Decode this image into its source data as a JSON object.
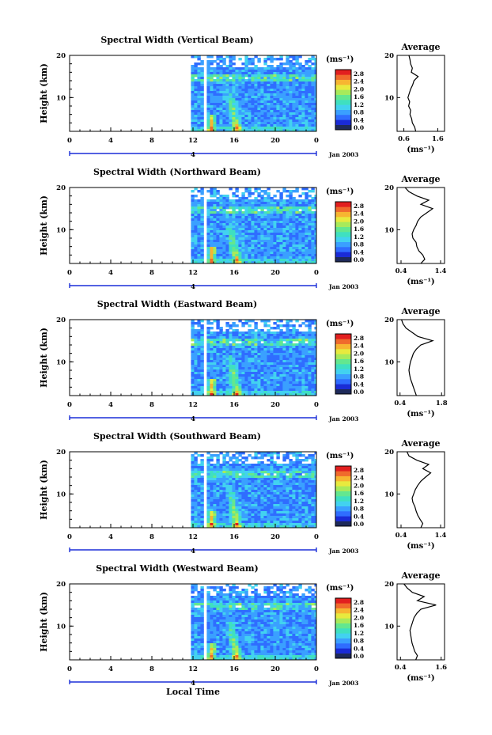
{
  "colors": {
    "colorbar": [
      "#1e2a5a",
      "#1a2bd6",
      "#2f6dff",
      "#3aa0ff",
      "#42d2f0",
      "#3fe0c0",
      "#63e78f",
      "#a8ea5a",
      "#e8ea3e",
      "#f7b531",
      "#f06a2c",
      "#e21f1f"
    ],
    "field_low": "#2b3fe0",
    "field_mid": "#38b9f2",
    "field_hot": "#e0281f",
    "background": "#ffffff"
  },
  "chart_data": [
    {
      "type": "heatmap",
      "title": "Spectral Width (Vertical Beam)",
      "ylabel": "Height (km)",
      "ylim": [
        2,
        20
      ],
      "yticks": [
        "10",
        "20"
      ],
      "xlim": [
        0,
        24
      ],
      "xticks": [
        "0",
        "4",
        "8",
        "12",
        "16",
        "20",
        "0"
      ],
      "date_tick": "4",
      "date_label": "Jan 2003",
      "data_gaps_hours": [
        [
          0,
          11.8
        ],
        [
          12.8,
          13.3
        ]
      ],
      "colorbar": {
        "unit": "(ms⁻¹)",
        "ticks": [
          "0.0",
          "0.4",
          "0.8",
          "1.2",
          "1.6",
          "2.0",
          "2.4",
          "2.8"
        ]
      },
      "profile": {
        "title": "Average",
        "xlabel": "(ms⁻¹)",
        "xticks": [
          "0.6",
          "1.6"
        ],
        "xlim": [
          0.4,
          1.8
        ],
        "heights": [
          2,
          3,
          4,
          5,
          6,
          7,
          8,
          9,
          10,
          11,
          12,
          13,
          14,
          15,
          16,
          17,
          18,
          19,
          20
        ],
        "values": [
          0.95,
          0.92,
          0.85,
          0.83,
          0.78,
          0.8,
          0.74,
          0.77,
          0.72,
          0.76,
          0.8,
          0.86,
          0.9,
          1.02,
          0.82,
          0.85,
          0.8,
          0.78,
          0.75
        ]
      }
    },
    {
      "type": "heatmap",
      "title": "Spectral Width (Northward Beam)",
      "ylabel": "Height (km)",
      "ylim": [
        2,
        20
      ],
      "yticks": [
        "10",
        "20"
      ],
      "xlim": [
        0,
        24
      ],
      "xticks": [
        "0",
        "4",
        "8",
        "12",
        "16",
        "20",
        "0"
      ],
      "date_tick": "4",
      "date_label": "Jan 2003",
      "data_gaps_hours": [
        [
          0,
          11.8
        ],
        [
          12.8,
          13.3
        ]
      ],
      "colorbar": {
        "unit": "(ms⁻¹)",
        "ticks": [
          "0.0",
          "0.4",
          "0.8",
          "1.2",
          "1.6",
          "2.0",
          "2.4",
          "2.8"
        ]
      },
      "profile": {
        "title": "Average",
        "xlabel": "(ms⁻¹)",
        "xticks": [
          "0.4",
          "1.4"
        ],
        "xlim": [
          0.3,
          1.5
        ],
        "heights": [
          2,
          3,
          4,
          5,
          6,
          7,
          8,
          9,
          10,
          11,
          12,
          13,
          14,
          15,
          16,
          17,
          18,
          19,
          20
        ],
        "values": [
          0.9,
          1.0,
          0.95,
          0.85,
          0.8,
          0.78,
          0.7,
          0.68,
          0.72,
          0.78,
          0.82,
          0.9,
          1.05,
          1.2,
          0.9,
          1.1,
          0.8,
          0.6,
          0.5
        ]
      }
    },
    {
      "type": "heatmap",
      "title": "Spectral Width (Eastward Beam)",
      "ylabel": "Height (km)",
      "ylim": [
        2,
        20
      ],
      "yticks": [
        "10",
        "20"
      ],
      "xlim": [
        0,
        24
      ],
      "xticks": [
        "0",
        "4",
        "8",
        "12",
        "16",
        "20",
        "0"
      ],
      "date_tick": "4",
      "date_label": "Jan 2003",
      "data_gaps_hours": [
        [
          0,
          11.8
        ],
        [
          12.8,
          13.3
        ]
      ],
      "colorbar": {
        "unit": "(ms⁻¹)",
        "ticks": [
          "0.0",
          "0.4",
          "0.8",
          "1.2",
          "1.6",
          "2.0",
          "2.4",
          "2.8"
        ]
      },
      "profile": {
        "title": "Average",
        "xlabel": "(ms⁻¹)",
        "xticks": [
          "0.4",
          "1.8"
        ],
        "xlim": [
          0.3,
          1.9
        ],
        "heights": [
          2,
          3,
          4,
          5,
          6,
          7,
          8,
          9,
          10,
          11,
          12,
          13,
          14,
          15,
          16,
          17,
          18,
          19,
          20
        ],
        "values": [
          0.95,
          0.9,
          0.85,
          0.8,
          0.75,
          0.72,
          0.7,
          0.72,
          0.75,
          0.8,
          0.85,
          0.95,
          1.1,
          1.5,
          1.0,
          0.8,
          0.6,
          0.5,
          0.45
        ]
      }
    },
    {
      "type": "heatmap",
      "title": "Spectral Width (Southward Beam)",
      "ylabel": "Height (km)",
      "ylim": [
        2,
        20
      ],
      "yticks": [
        "10",
        "20"
      ],
      "xlim": [
        0,
        24
      ],
      "xticks": [
        "0",
        "4",
        "8",
        "12",
        "16",
        "20",
        "0"
      ],
      "date_tick": "4",
      "date_label": "Jan 2003",
      "data_gaps_hours": [
        [
          0,
          11.8
        ],
        [
          12.8,
          13.3
        ]
      ],
      "colorbar": {
        "unit": "(ms⁻¹)",
        "ticks": [
          "0.0",
          "0.4",
          "0.8",
          "1.2",
          "1.6",
          "2.0",
          "2.4",
          "2.8"
        ]
      },
      "profile": {
        "title": "Average",
        "xlabel": "(ms⁻¹)",
        "xticks": [
          "0.4",
          "1.4"
        ],
        "xlim": [
          0.3,
          1.5
        ],
        "heights": [
          2,
          3,
          4,
          5,
          6,
          7,
          8,
          9,
          10,
          11,
          12,
          13,
          14,
          15,
          16,
          17,
          18,
          19,
          20
        ],
        "values": [
          0.9,
          0.95,
          0.88,
          0.82,
          0.78,
          0.75,
          0.7,
          0.68,
          0.72,
          0.76,
          0.82,
          0.9,
          1.02,
          1.15,
          0.95,
          1.1,
          0.8,
          0.6,
          0.55
        ]
      }
    },
    {
      "type": "heatmap",
      "title": "Spectral Width (Westward Beam)",
      "ylabel": "Height (km)",
      "ylim": [
        2,
        20
      ],
      "yticks": [
        "10",
        "20"
      ],
      "xlim": [
        0,
        24
      ],
      "xticks": [
        "0",
        "4",
        "8",
        "12",
        "16",
        "20",
        "0"
      ],
      "date_tick": "4",
      "date_label": "Jan 2003",
      "data_gaps_hours": [
        [
          0,
          11.8
        ],
        [
          12.8,
          13.3
        ]
      ],
      "colorbar": {
        "unit": "(ms⁻¹)",
        "ticks": [
          "0.0",
          "0.4",
          "0.8",
          "1.2",
          "1.6",
          "2.0",
          "2.4",
          "2.8"
        ]
      },
      "profile": {
        "title": "Average",
        "xlabel": "(ms⁻¹)",
        "xticks": [
          "0.4",
          "1.6"
        ],
        "xlim": [
          0.3,
          1.7
        ],
        "heights": [
          2,
          3,
          4,
          5,
          6,
          7,
          8,
          9,
          10,
          11,
          12,
          13,
          14,
          15,
          16,
          17,
          18,
          19,
          20
        ],
        "values": [
          0.85,
          0.9,
          0.82,
          0.78,
          0.74,
          0.72,
          0.7,
          0.68,
          0.72,
          0.76,
          0.8,
          0.88,
          1.0,
          1.45,
          0.9,
          1.1,
          0.75,
          0.6,
          0.5
        ]
      }
    }
  ],
  "footer": {
    "xlabel": "Local Time"
  }
}
